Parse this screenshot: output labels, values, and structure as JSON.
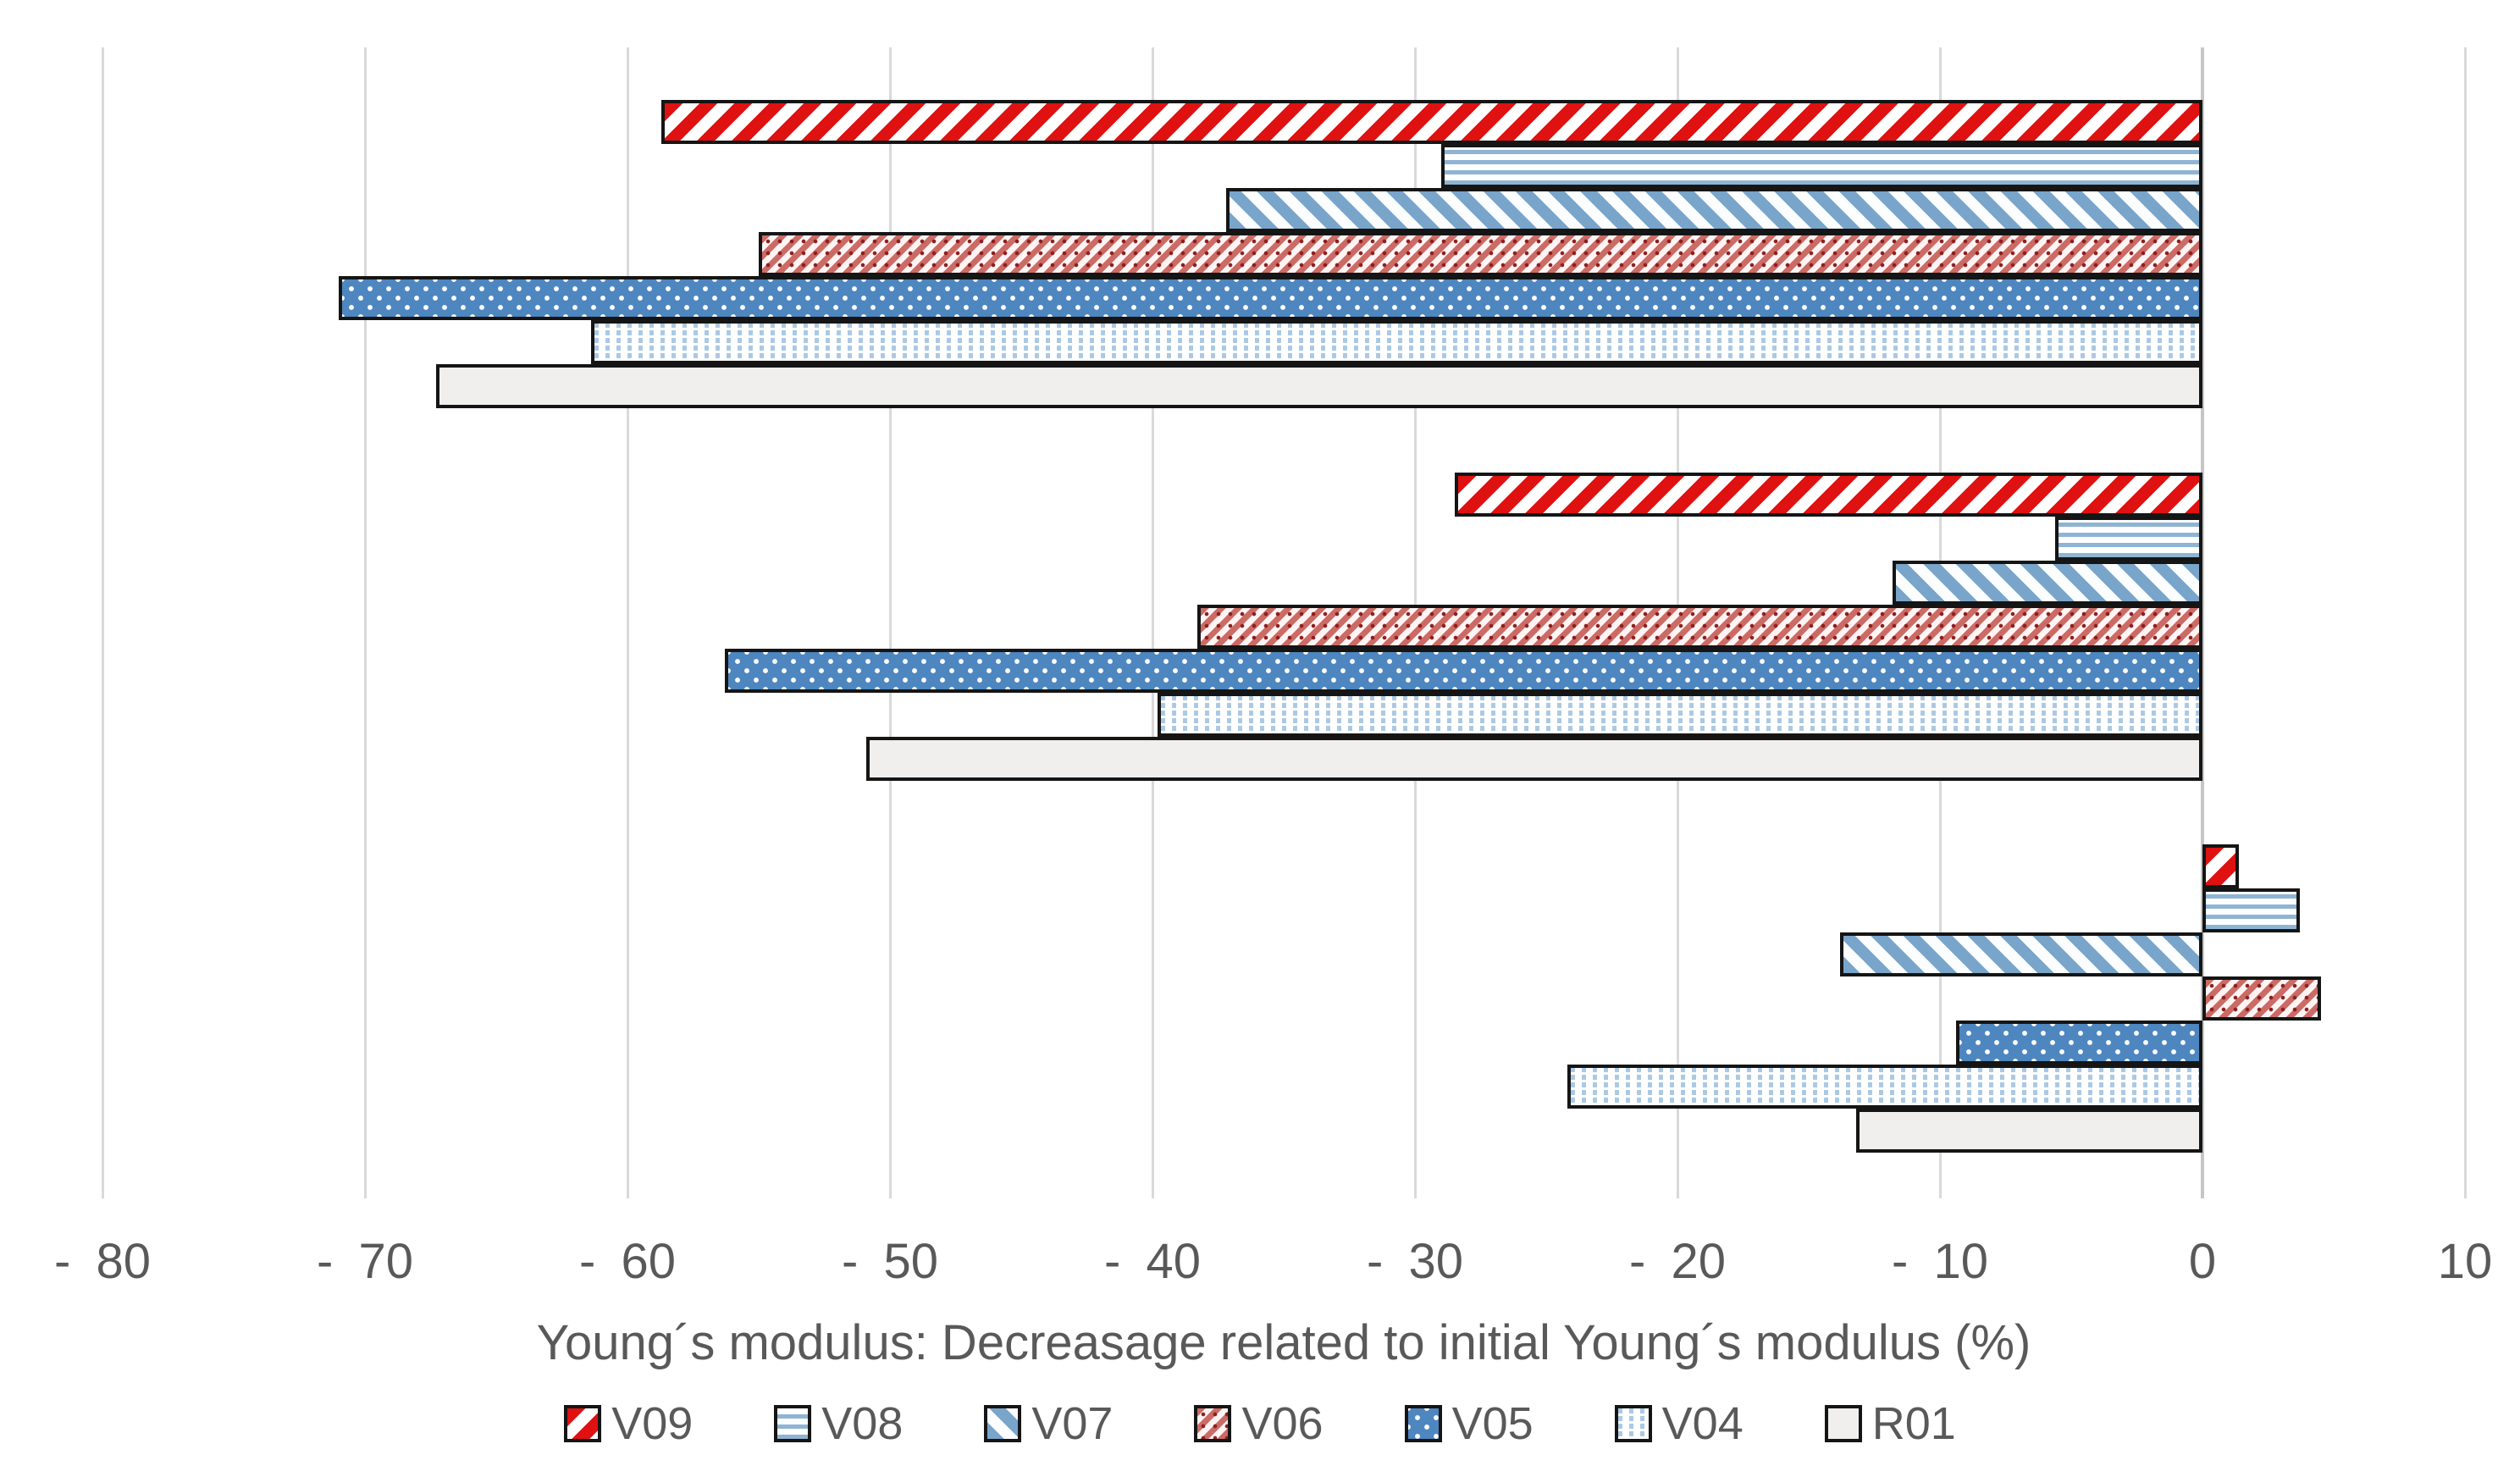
{
  "chart_data": {
    "type": "bar",
    "orientation": "horizontal",
    "axis_title": "Young´s modulus: Decreasage related to initial Young´s modulus (%)",
    "xlabel": "Young´s modulus: Decreasage related to initial Young´s modulus (%)",
    "ylabel": "",
    "xlim": [
      -80,
      10
    ],
    "grid": "vertical-gridlines-on",
    "legend_position": "bottom",
    "x_ticks": [
      {
        "value": -80,
        "label": "- 80"
      },
      {
        "value": -70,
        "label": "- 70"
      },
      {
        "value": -60,
        "label": "- 60"
      },
      {
        "value": -50,
        "label": "- 50"
      },
      {
        "value": -40,
        "label": "- 40"
      },
      {
        "value": -30,
        "label": "- 30"
      },
      {
        "value": -20,
        "label": "- 20"
      },
      {
        "value": -10,
        "label": "- 10"
      },
      {
        "value": 0,
        "label": "0"
      },
      {
        "value": 10,
        "label": "10"
      }
    ],
    "categories": [
      "",
      "",
      ""
    ],
    "series": [
      {
        "name": "V09",
        "pattern": "red-diagonal-stripes",
        "values": [
          -58.7,
          -28.5,
          1.4
        ]
      },
      {
        "name": "V08",
        "pattern": "blue-horizontal-stripes",
        "values": [
          -29.0,
          -5.6,
          3.7
        ]
      },
      {
        "name": "V07",
        "pattern": "blue-diagonal-stripes",
        "values": [
          -37.2,
          -11.8,
          -13.8
        ]
      },
      {
        "name": "V06",
        "pattern": "red-fine-hatch",
        "values": [
          -55.0,
          -38.3,
          4.5
        ]
      },
      {
        "name": "V05",
        "pattern": "blue-solid-white-dots",
        "values": [
          -71.0,
          -56.3,
          -9.4
        ]
      },
      {
        "name": "V04",
        "pattern": "pale-blue-dashed-columns",
        "values": [
          -61.4,
          -39.8,
          -24.2
        ]
      },
      {
        "name": "R01",
        "pattern": "light-gray-solid",
        "values": [
          -67.3,
          -50.9,
          -13.2
        ]
      }
    ],
    "colors": {
      "stripe_red": "#df1111",
      "hatch_dark_red": "#8e1f1f",
      "steel_blue": "#4e86c0",
      "light_blue_stripe": "#8fb4d4",
      "pale_blue_dash": "#abc9e4",
      "light_gray_fill": "#f0efee",
      "gridline": "#d9d9d9",
      "zero_axis": "#c6c6c6",
      "bar_border": "#151515",
      "text": "#595959"
    }
  }
}
